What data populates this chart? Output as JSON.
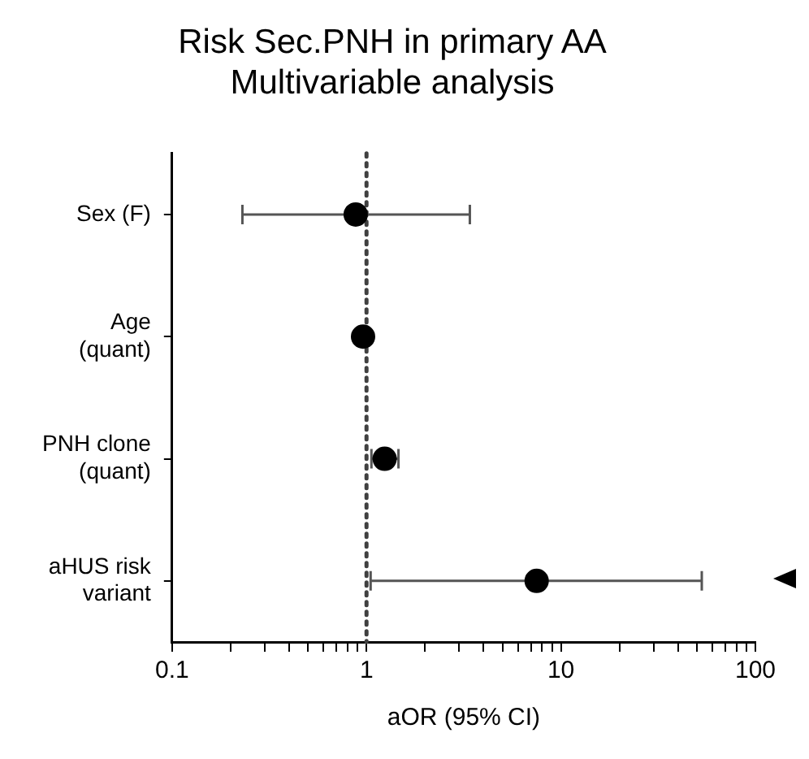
{
  "chart_data": {
    "type": "scatter",
    "orientation": "horizontal",
    "title": "Risk Sec.PNH in primary AA\nMultivariable analysis",
    "xlabel": "aOR (95% CI)",
    "categories": [
      "Sex (F)",
      "Age\n(quant)",
      "PNH clone\n(quant)",
      "aHUS risk\nvariant"
    ],
    "series": [
      {
        "color": "#000000",
        "values": [
          0.88,
          0.96,
          1.24,
          7.5
        ],
        "errors": [
          [
            0.23,
            3.4
          ],
          null,
          [
            1.06,
            1.46
          ],
          [
            1.05,
            53
          ]
        ]
      }
    ],
    "log": "x",
    "xlim": [
      0.1,
      100
    ],
    "xticks": [
      0.1,
      {
        "value": 0.2,
        "label": null
      },
      {
        "value": 0.3,
        "label": null
      },
      {
        "value": 0.4,
        "label": null
      },
      {
        "value": 0.5,
        "label": null
      },
      {
        "value": 0.6,
        "label": null
      },
      {
        "value": 0.7,
        "label": null
      },
      {
        "value": 0.8,
        "label": null
      },
      {
        "value": 0.9,
        "label": null
      },
      1,
      {
        "value": 2,
        "label": null
      },
      {
        "value": 3,
        "label": null
      },
      {
        "value": 4,
        "label": null
      },
      {
        "value": 5,
        "label": null
      },
      {
        "value": 6,
        "label": null
      },
      {
        "value": 7,
        "label": null
      },
      {
        "value": 8,
        "label": null
      },
      {
        "value": 9,
        "label": null
      },
      10,
      {
        "value": 20,
        "label": null
      },
      {
        "value": 30,
        "label": null
      },
      {
        "value": 40,
        "label": null
      },
      {
        "value": 50,
        "label": null
      },
      {
        "value": 60,
        "label": null
      },
      {
        "value": 70,
        "label": null
      },
      {
        "value": 80,
        "label": null
      },
      {
        "value": 90,
        "label": null
      },
      100
    ],
    "ref_lines": [
      {
        "axis": "x",
        "value": 1,
        "color": "#404040",
        "line_style": "dotted"
      }
    ],
    "marker": "circle",
    "grid": false,
    "legend": false
  }
}
